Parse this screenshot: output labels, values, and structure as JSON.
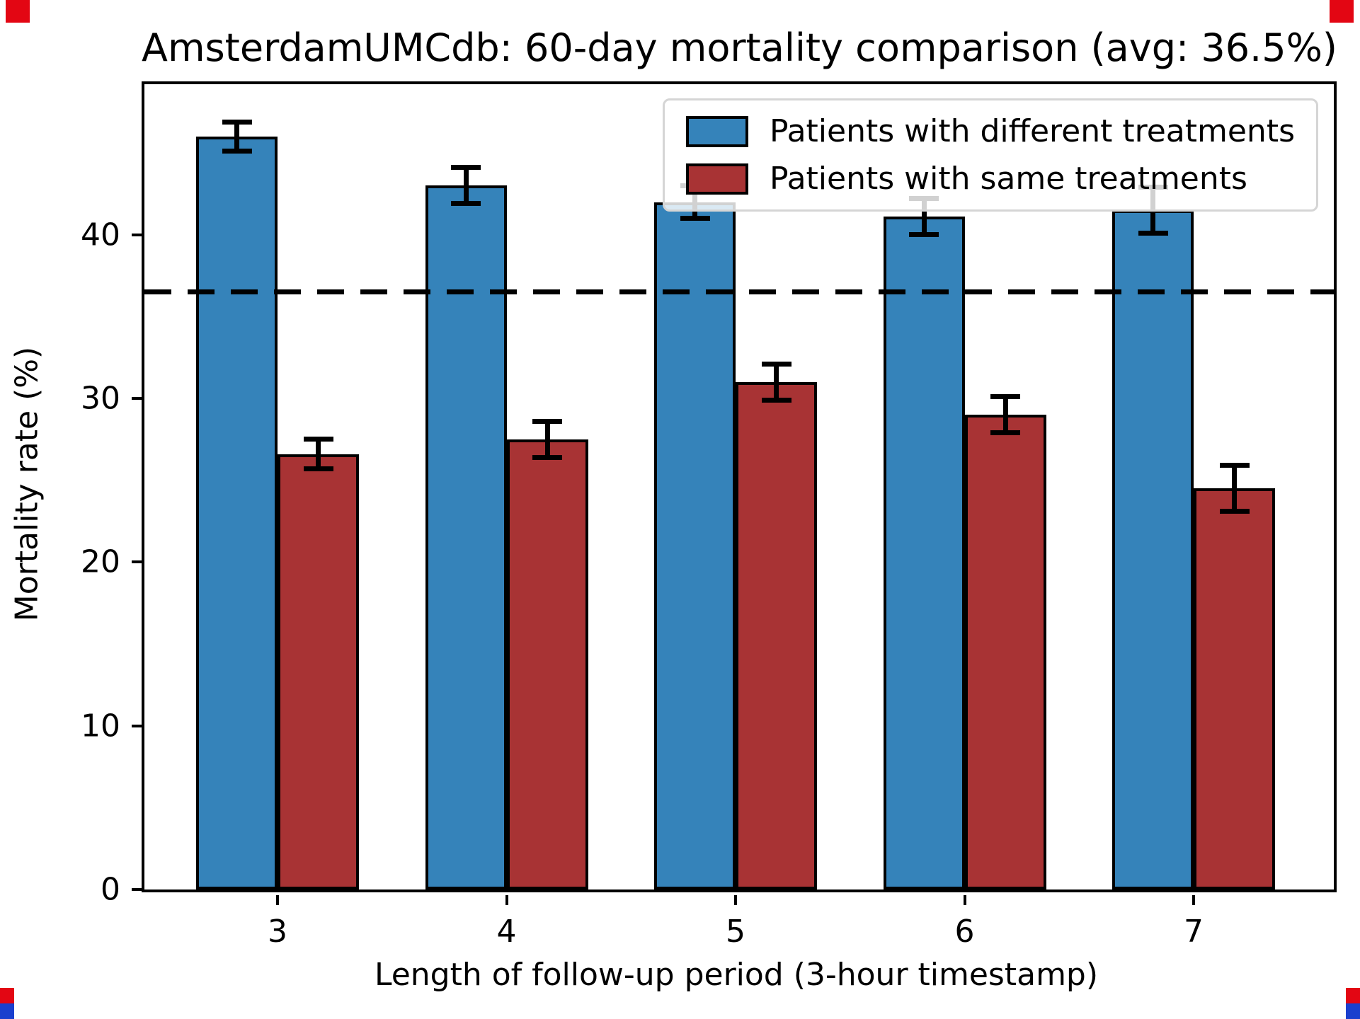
{
  "chart_data": {
    "type": "bar",
    "title": "AmsterdamUMCdb: 60-day mortality comparison (avg: 36.5%)",
    "xlabel": "Length of follow-up period (3-hour timestamp)",
    "ylabel": "Mortality rate (%)",
    "categories": [
      "3",
      "4",
      "5",
      "6",
      "7"
    ],
    "series": [
      {
        "name": "Patients with different treatments",
        "color": "#3583ba",
        "values": [
          46.0,
          43.0,
          42.0,
          41.1,
          41.5
        ],
        "errors": [
          0.9,
          1.1,
          1.0,
          1.1,
          1.4
        ]
      },
      {
        "name": "Patients with same treatments",
        "color": "#a83334",
        "values": [
          26.6,
          27.5,
          31.0,
          29.0,
          24.5
        ],
        "errors": [
          0.9,
          1.1,
          1.1,
          1.1,
          1.4
        ]
      }
    ],
    "avg_line": {
      "value": 36.5,
      "style": "dashed",
      "color": "#000000"
    },
    "yticks": [
      0,
      10,
      20,
      30,
      40
    ],
    "ylim": [
      0,
      49.2
    ],
    "legend_position": "upper right",
    "grid": false,
    "error_bar_color": "#000000"
  },
  "artifacts": {
    "corner_marker_red": "#e30613",
    "corner_marker_blue": "#1b3fce"
  }
}
